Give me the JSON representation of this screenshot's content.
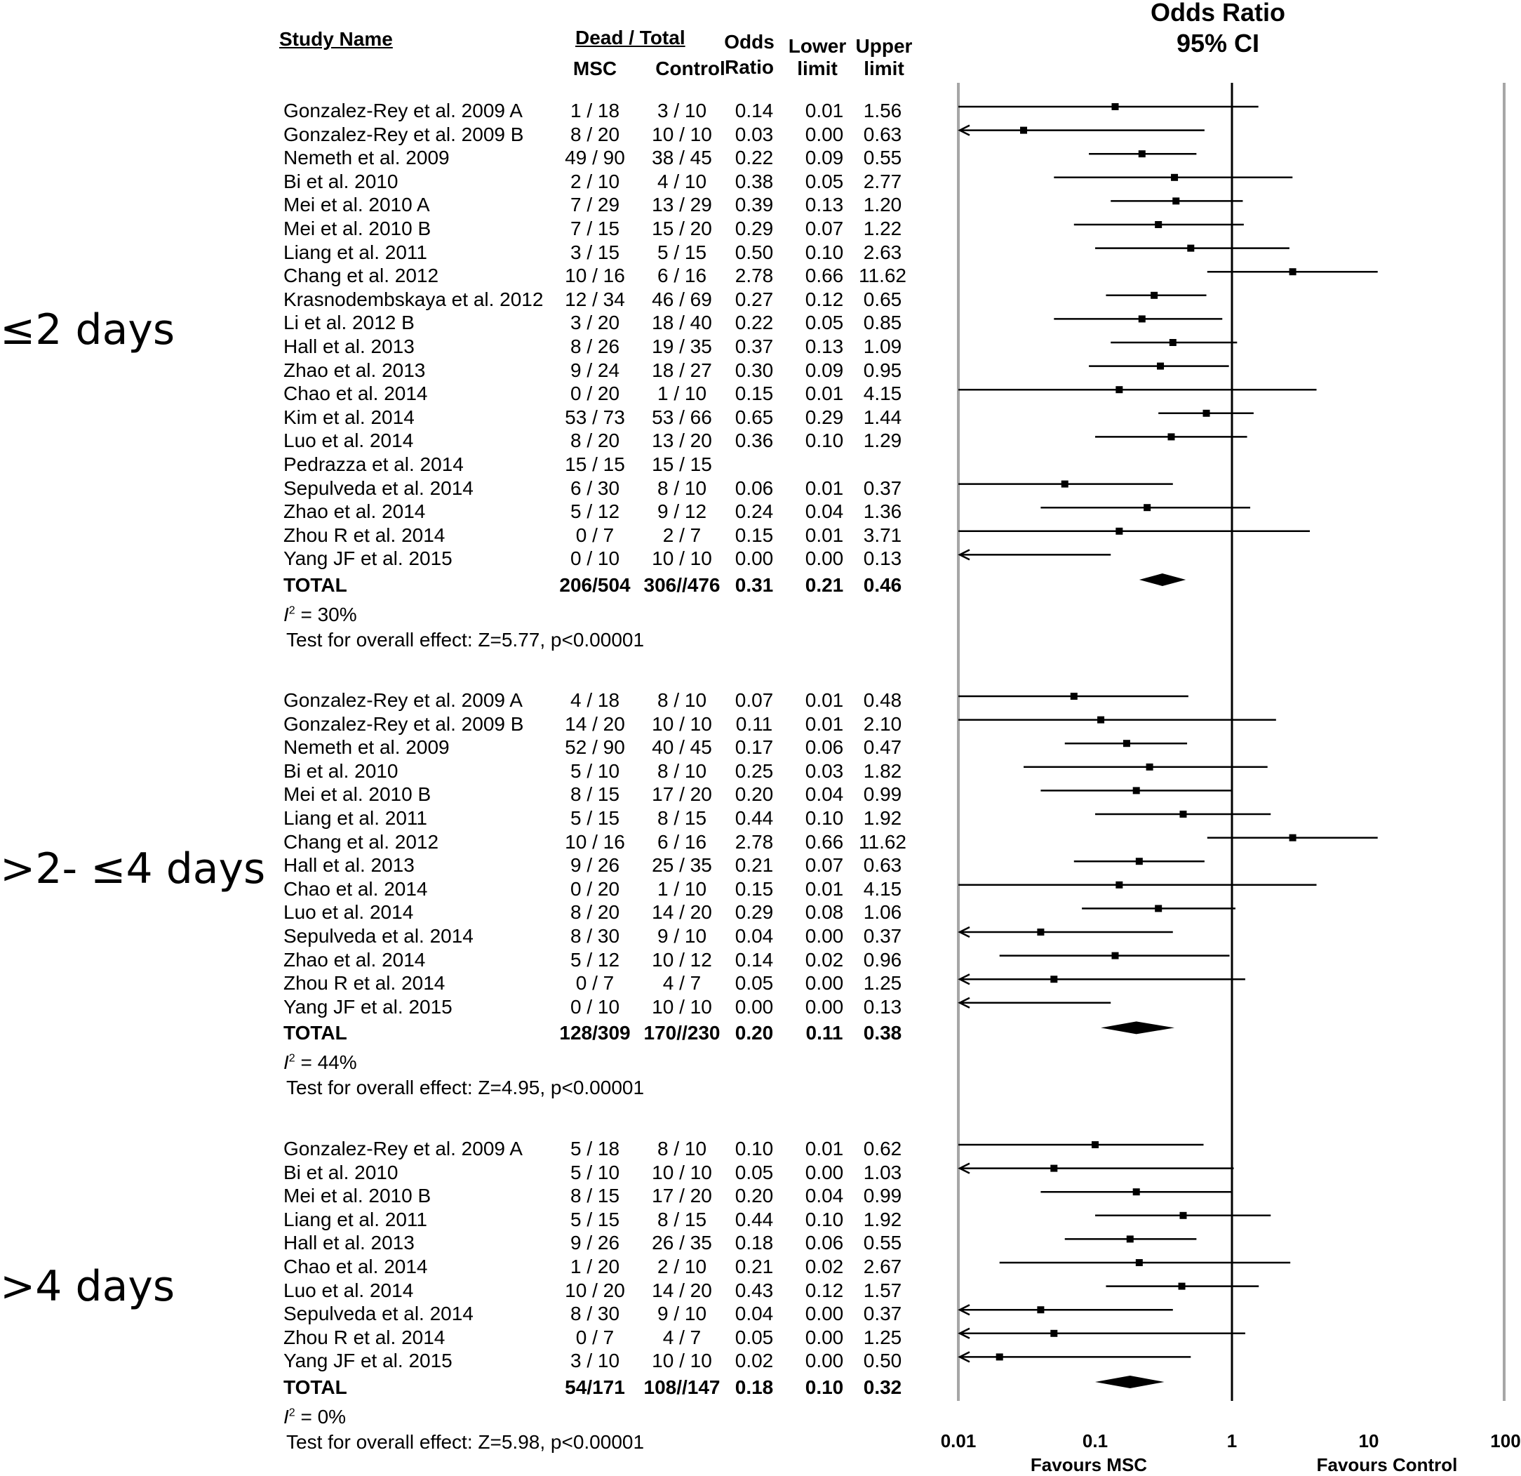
{
  "header": {
    "study_name": "Study Name",
    "dead_total": "Dead / Total",
    "msc": "MSC",
    "control": "Control",
    "odds": "Odds",
    "ratio": "Ratio",
    "lower": "Lower",
    "upper": "Upper",
    "limit": "limit",
    "plot_title_1": "Odds Ratio",
    "plot_title_2": "95% CI"
  },
  "chart_data": {
    "type": "forest",
    "x_scale": "log",
    "xlim": [
      0.01,
      100
    ],
    "x_ticks": [
      "0.01",
      "0.1",
      "1",
      "10",
      "100"
    ],
    "reference_line": 1,
    "x_label_left": "Favours MSC",
    "x_label_right": "Favours Control",
    "groups": [
      {
        "label": "≤2 days",
        "studies": [
          {
            "name": "Gonzalez-Rey et al. 2009 A",
            "msc": "1 / 18",
            "control": "3 / 10",
            "or": "0.14",
            "lower": "0.01",
            "upper": "1.56"
          },
          {
            "name": "Gonzalez-Rey et al. 2009 B",
            "msc": "8 / 20",
            "control": "10 / 10",
            "or": "0.03",
            "lower": "0.00",
            "upper": "0.63"
          },
          {
            "name": "Nemeth et al. 2009",
            "msc": "49 / 90",
            "control": "38 / 45",
            "or": "0.22",
            "lower": "0.09",
            "upper": "0.55"
          },
          {
            "name": "Bi et al. 2010",
            "msc": "2 / 10",
            "control": "4 / 10",
            "or": "0.38",
            "lower": "0.05",
            "upper": "2.77"
          },
          {
            "name": "Mei et al. 2010 A",
            "msc": "7 / 29",
            "control": "13 / 29",
            "or": "0.39",
            "lower": "0.13",
            "upper": "1.20"
          },
          {
            "name": "Mei et al. 2010 B",
            "msc": "7 / 15",
            "control": "15 / 20",
            "or": "0.29",
            "lower": "0.07",
            "upper": "1.22"
          },
          {
            "name": "Liang et al. 2011",
            "msc": "3 / 15",
            "control": "5 / 15",
            "or": "0.50",
            "lower": "0.10",
            "upper": "2.63"
          },
          {
            "name": "Chang et al. 2012",
            "msc": "10 / 16",
            "control": "6 / 16",
            "or": "2.78",
            "lower": "0.66",
            "upper": "11.62"
          },
          {
            "name": "Krasnodembskaya et al. 2012",
            "msc": "12 / 34",
            "control": "46 / 69",
            "or": "0.27",
            "lower": "0.12",
            "upper": "0.65"
          },
          {
            "name": "Li et al. 2012 B",
            "msc": "3 / 20",
            "control": "18 / 40",
            "or": "0.22",
            "lower": "0.05",
            "upper": "0.85"
          },
          {
            "name": "Hall et al. 2013",
            "msc": "8 / 26",
            "control": "19 / 35",
            "or": "0.37",
            "lower": "0.13",
            "upper": "1.09"
          },
          {
            "name": "Zhao et al. 2013",
            "msc": "9 / 24",
            "control": "18 / 27",
            "or": "0.30",
            "lower": "0.09",
            "upper": "0.95"
          },
          {
            "name": "Chao et al. 2014",
            "msc": "0 / 20",
            "control": "1 / 10",
            "or": "0.15",
            "lower": "0.01",
            "upper": "4.15"
          },
          {
            "name": "Kim et al. 2014",
            "msc": "53 / 73",
            "control": "53 / 66",
            "or": "0.65",
            "lower": "0.29",
            "upper": "1.44"
          },
          {
            "name": "Luo et al. 2014",
            "msc": "8 / 20",
            "control": "13 / 20",
            "or": "0.36",
            "lower": "0.10",
            "upper": "1.29"
          },
          {
            "name": "Pedrazza et al. 2014",
            "msc": "15 / 15",
            "control": "15 / 15",
            "or": "",
            "lower": "",
            "upper": ""
          },
          {
            "name": "Sepulveda et al. 2014",
            "msc": "6 / 30",
            "control": "8 / 10",
            "or": "0.06",
            "lower": "0.01",
            "upper": "0.37"
          },
          {
            "name": "Zhao et al. 2014",
            "msc": "5 / 12",
            "control": "9 / 12",
            "or": "0.24",
            "lower": "0.04",
            "upper": "1.36"
          },
          {
            "name": "Zhou R et al. 2014",
            "msc": "0 / 7",
            "control": "2 / 7",
            "or": "0.15",
            "lower": "0.01",
            "upper": "3.71"
          },
          {
            "name": "Yang JF et al. 2015",
            "msc": "0 / 10",
            "control": "10 / 10",
            "or": "0.00",
            "lower": "0.00",
            "upper": "0.13"
          }
        ],
        "total": {
          "name": "TOTAL",
          "msc": "206/504",
          "control": "306//476",
          "or": "0.31",
          "lower": "0.21",
          "upper": "0.46"
        },
        "i2_label": "I",
        "i2_value": " = 30%",
        "test": "Test for overall effect: Z=5.77, p<0.00001"
      },
      {
        "label": ">2- ≤4 days",
        "studies": [
          {
            "name": "Gonzalez-Rey et al. 2009 A",
            "msc": "4 / 18",
            "control": "8 / 10",
            "or": "0.07",
            "lower": "0.01",
            "upper": "0.48"
          },
          {
            "name": "Gonzalez-Rey et al. 2009 B",
            "msc": "14 / 20",
            "control": "10 / 10",
            "or": "0.11",
            "lower": "0.01",
            "upper": "2.10"
          },
          {
            "name": "Nemeth et al. 2009",
            "msc": "52 / 90",
            "control": "40 / 45",
            "or": "0.17",
            "lower": "0.06",
            "upper": "0.47"
          },
          {
            "name": "Bi et al. 2010",
            "msc": "5 / 10",
            "control": "8 / 10",
            "or": "0.25",
            "lower": "0.03",
            "upper": "1.82"
          },
          {
            "name": "Mei et al. 2010 B",
            "msc": "8 / 15",
            "control": "17 / 20",
            "or": "0.20",
            "lower": "0.04",
            "upper": "0.99"
          },
          {
            "name": "Liang et al. 2011",
            "msc": "5 / 15",
            "control": "8 / 15",
            "or": "0.44",
            "lower": "0.10",
            "upper": "1.92"
          },
          {
            "name": "Chang et al. 2012",
            "msc": "10 / 16",
            "control": "6 / 16",
            "or": "2.78",
            "lower": "0.66",
            "upper": "11.62"
          },
          {
            "name": "Hall et al. 2013",
            "msc": "9 / 26",
            "control": "25 / 35",
            "or": "0.21",
            "lower": "0.07",
            "upper": "0.63"
          },
          {
            "name": "Chao et al. 2014",
            "msc": "0 / 20",
            "control": "1 / 10",
            "or": "0.15",
            "lower": "0.01",
            "upper": "4.15"
          },
          {
            "name": "Luo et al. 2014",
            "msc": "8 / 20",
            "control": "14 / 20",
            "or": "0.29",
            "lower": "0.08",
            "upper": "1.06"
          },
          {
            "name": "Sepulveda et al. 2014",
            "msc": "8 / 30",
            "control": "9 / 10",
            "or": "0.04",
            "lower": "0.00",
            "upper": "0.37"
          },
          {
            "name": "Zhao et al. 2014",
            "msc": "5 / 12",
            "control": "10 / 12",
            "or": "0.14",
            "lower": "0.02",
            "upper": "0.96"
          },
          {
            "name": "Zhou R et al. 2014",
            "msc": "0 / 7",
            "control": "4 / 7",
            "or": "0.05",
            "lower": "0.00",
            "upper": "1.25"
          },
          {
            "name": "Yang JF et al. 2015",
            "msc": "0 / 10",
            "control": "10 / 10",
            "or": "0.00",
            "lower": "0.00",
            "upper": "0.13"
          }
        ],
        "total": {
          "name": "TOTAL",
          "msc": "128/309",
          "control": "170//230",
          "or": "0.20",
          "lower": "0.11",
          "upper": "0.38"
        },
        "i2_label": "I",
        "i2_value": " = 44%",
        "test": "Test for overall effect: Z=4.95, p<0.00001"
      },
      {
        "label": ">4 days",
        "studies": [
          {
            "name": "Gonzalez-Rey et al. 2009 A",
            "msc": "5 / 18",
            "control": "8 / 10",
            "or": "0.10",
            "lower": "0.01",
            "upper": "0.62"
          },
          {
            "name": "Bi et al. 2010",
            "msc": "5 / 10",
            "control": "10 / 10",
            "or": "0.05",
            "lower": "0.00",
            "upper": "1.03"
          },
          {
            "name": "Mei et al. 2010 B",
            "msc": "8 / 15",
            "control": "17 / 20",
            "or": "0.20",
            "lower": "0.04",
            "upper": "0.99"
          },
          {
            "name": "Liang et al. 2011",
            "msc": "5 / 15",
            "control": "8 / 15",
            "or": "0.44",
            "lower": "0.10",
            "upper": "1.92"
          },
          {
            "name": "Hall et al. 2013",
            "msc": "9 / 26",
            "control": "26 / 35",
            "or": "0.18",
            "lower": "0.06",
            "upper": "0.55"
          },
          {
            "name": "Chao et al. 2014",
            "msc": "1 / 20",
            "control": "2 / 10",
            "or": "0.21",
            "lower": "0.02",
            "upper": "2.67"
          },
          {
            "name": "Luo et al. 2014",
            "msc": "10 / 20",
            "control": "14 / 20",
            "or": "0.43",
            "lower": "0.12",
            "upper": "1.57"
          },
          {
            "name": "Sepulveda et al. 2014",
            "msc": "8 / 30",
            "control": "9 / 10",
            "or": "0.04",
            "lower": "0.00",
            "upper": "0.37"
          },
          {
            "name": "Zhou R et al. 2014",
            "msc": "0 / 7",
            "control": "4 / 7",
            "or": "0.05",
            "lower": "0.00",
            "upper": "1.25"
          },
          {
            "name": "Yang JF et al. 2015",
            "msc": "3 / 10",
            "control": "10 / 10",
            "or": "0.02",
            "lower": "0.00",
            "upper": "0.50"
          }
        ],
        "total": {
          "name": "TOTAL",
          "msc": "54/171",
          "control": "108//147",
          "or": "0.18",
          "lower": "0.10",
          "upper": "0.32"
        },
        "i2_label": "I",
        "i2_value": " = 0%",
        "test": "Test for overall effect: Z=5.98, p<0.00001"
      }
    ],
    "colors": {
      "marks": "#000000",
      "axis_bounds": "#a6a6a6"
    }
  }
}
